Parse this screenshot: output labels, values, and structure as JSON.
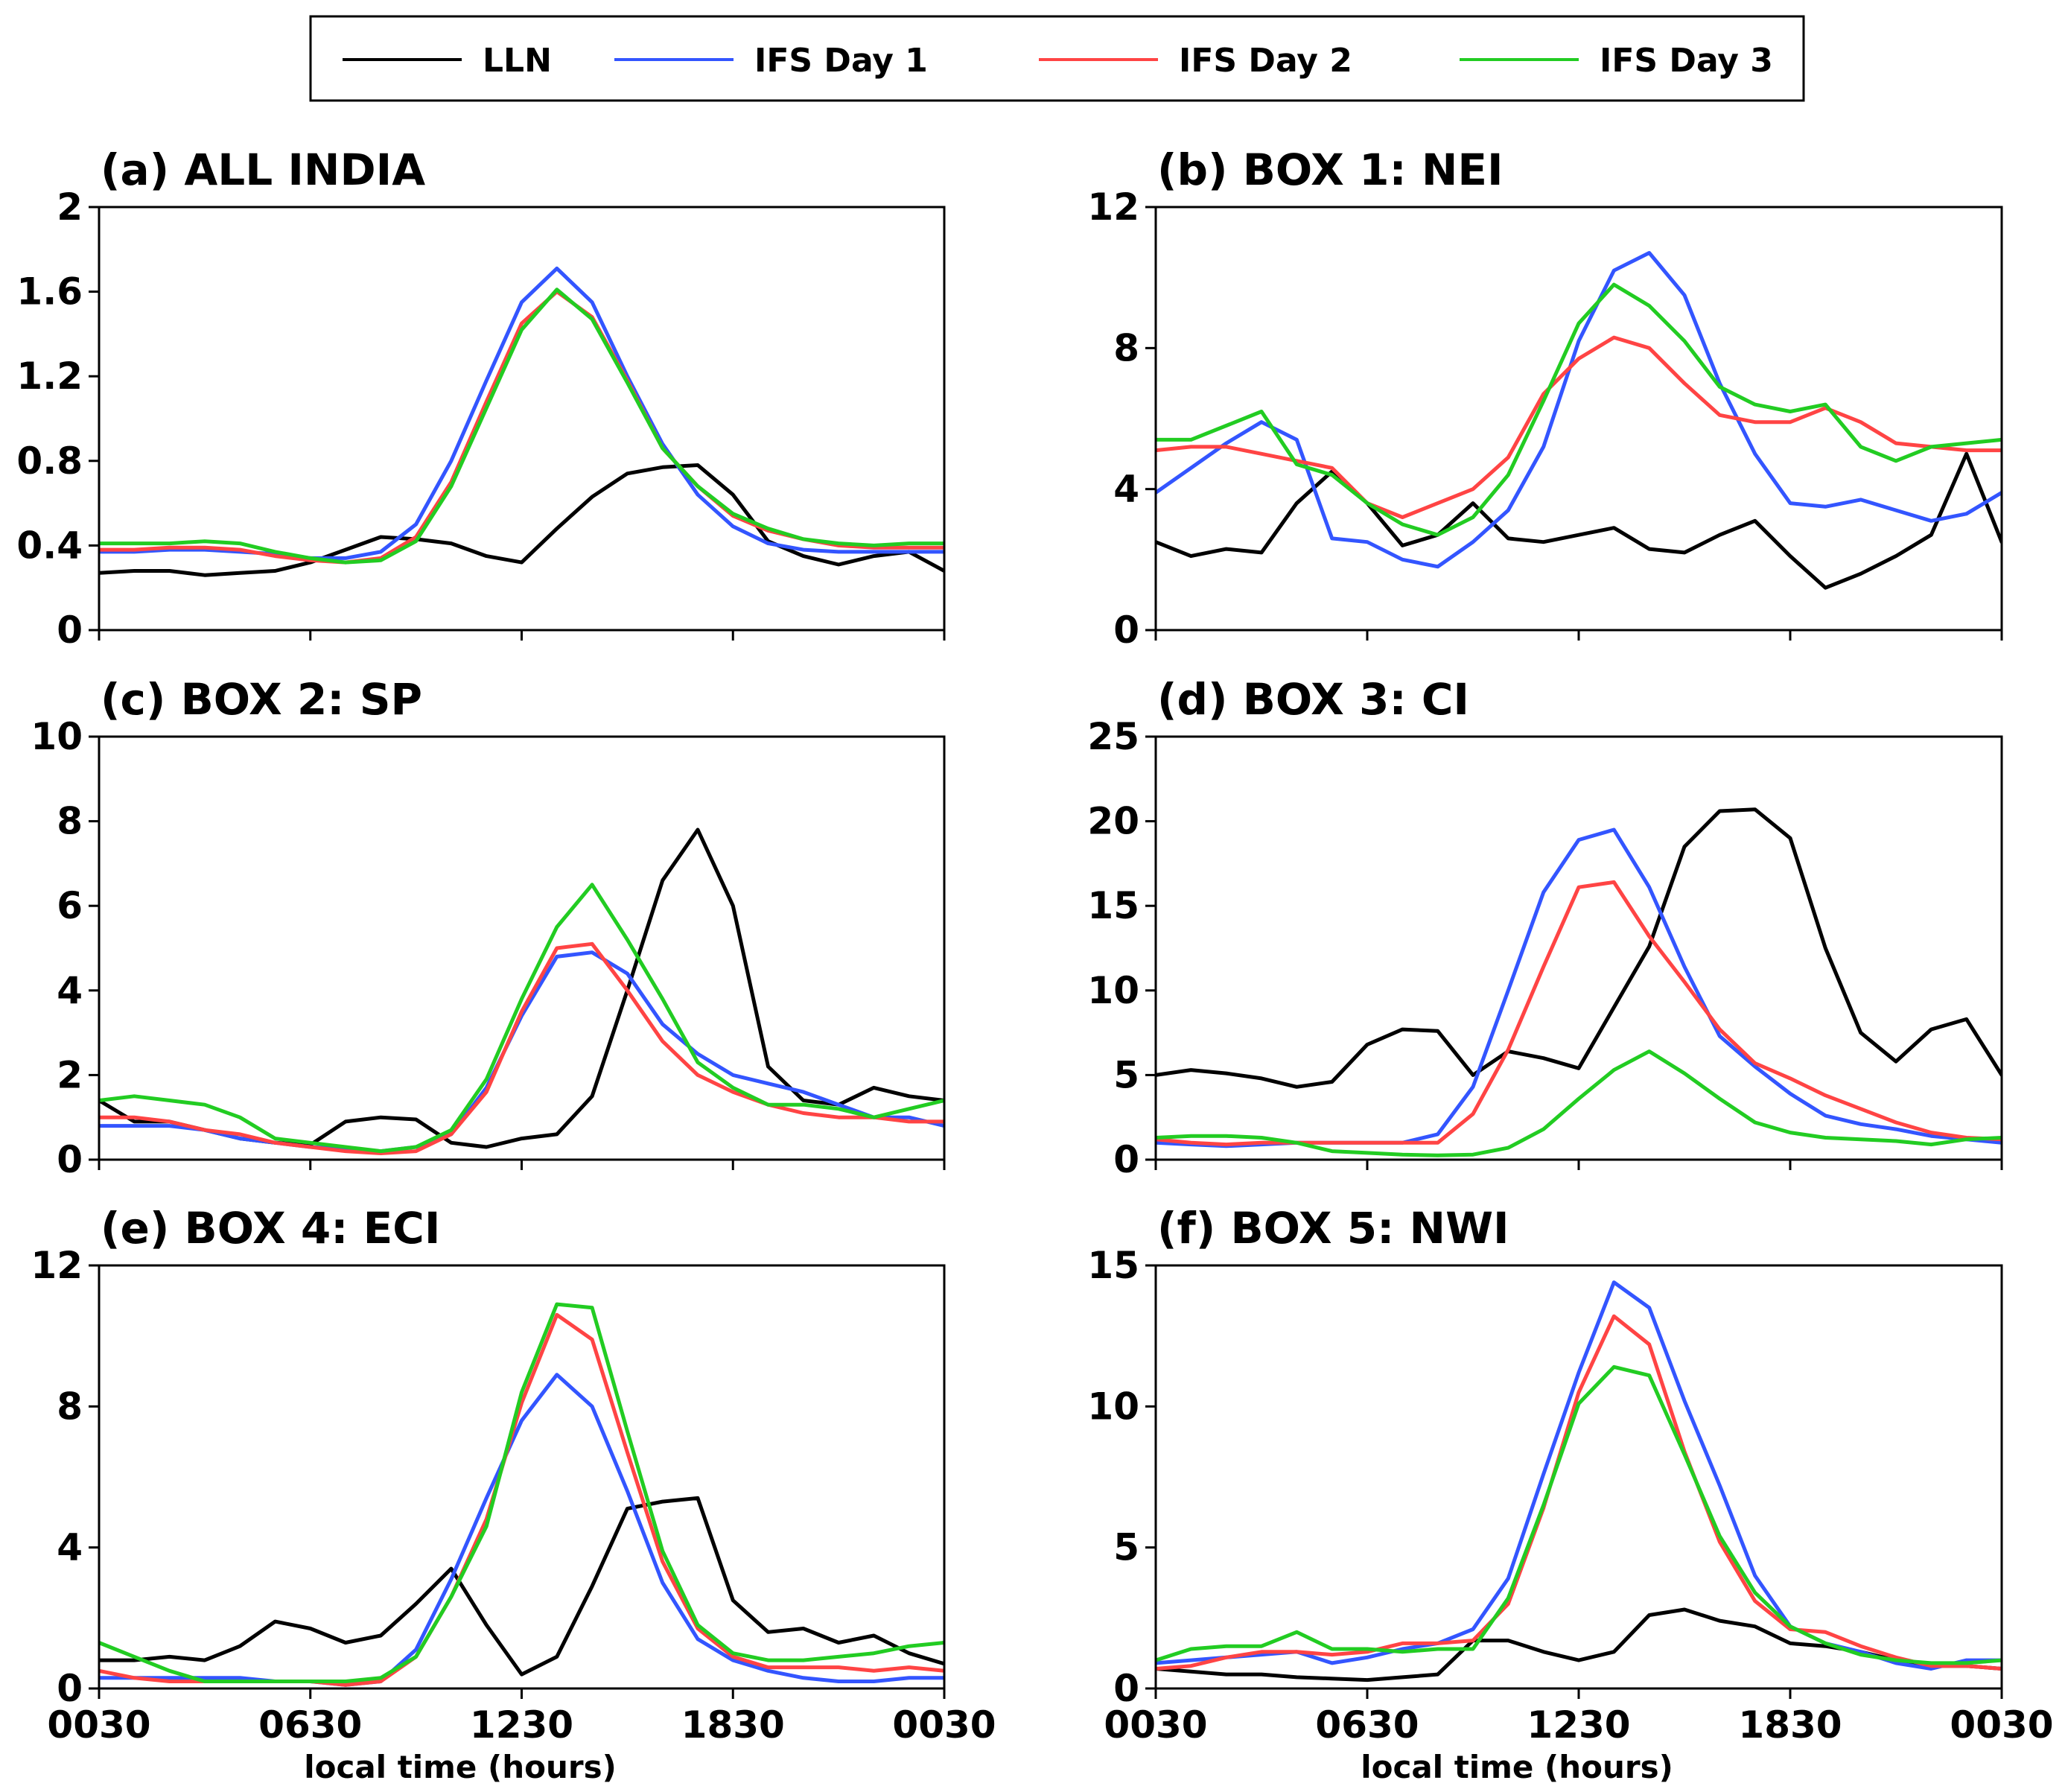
{
  "legend": [
    {
      "name": "LLN",
      "color": "#000000"
    },
    {
      "name": "IFS Day 1",
      "color": "#3355ff"
    },
    {
      "name": "IFS Day 2",
      "color": "#ff4444"
    },
    {
      "name": "IFS Day 3",
      "color": "#22cc22"
    }
  ],
  "chart_data": [
    {
      "type": "line",
      "title": "(a) ALL INDIA",
      "xlabel": "",
      "ylabel": "",
      "xticks": [
        "0030",
        "0630",
        "1230",
        "1830",
        "0030"
      ],
      "yticks": [
        "0",
        "0.4",
        "0.8",
        "1.2",
        "1.6",
        "2"
      ],
      "ylim": [
        0,
        2
      ],
      "x": [
        0.5,
        1.5,
        2.5,
        3.5,
        4.5,
        5.5,
        6.5,
        7.5,
        8.5,
        9.5,
        10.5,
        11.5,
        12.5,
        13.5,
        14.5,
        15.5,
        16.5,
        17.5,
        18.5,
        19.5,
        20.5,
        21.5,
        22.5,
        23.5,
        24.5
      ],
      "series": [
        {
          "name": "LLN",
          "values": [
            0.27,
            0.28,
            0.28,
            0.26,
            0.27,
            0.28,
            0.32,
            0.38,
            0.44,
            0.43,
            0.41,
            0.35,
            0.32,
            0.48,
            0.63,
            0.74,
            0.77,
            0.78,
            0.64,
            0.42,
            0.35,
            0.31,
            0.35,
            0.37,
            0.28
          ]
        },
        {
          "name": "IFS Day 1",
          "values": [
            0.37,
            0.37,
            0.38,
            0.38,
            0.37,
            0.36,
            0.34,
            0.34,
            0.37,
            0.5,
            0.8,
            1.18,
            1.55,
            1.71,
            1.55,
            1.2,
            0.88,
            0.64,
            0.49,
            0.41,
            0.38,
            0.37,
            0.37,
            0.37,
            0.37
          ]
        },
        {
          "name": "IFS Day 2",
          "values": [
            0.38,
            0.38,
            0.39,
            0.39,
            0.38,
            0.35,
            0.33,
            0.32,
            0.34,
            0.44,
            0.7,
            1.08,
            1.45,
            1.6,
            1.48,
            1.18,
            0.86,
            0.68,
            0.54,
            0.47,
            0.43,
            0.4,
            0.39,
            0.39,
            0.39
          ]
        },
        {
          "name": "IFS Day 3",
          "values": [
            0.41,
            0.41,
            0.41,
            0.42,
            0.41,
            0.37,
            0.34,
            0.32,
            0.33,
            0.42,
            0.68,
            1.05,
            1.42,
            1.61,
            1.47,
            1.17,
            0.86,
            0.68,
            0.55,
            0.48,
            0.43,
            0.41,
            0.4,
            0.41,
            0.41
          ]
        }
      ]
    },
    {
      "type": "line",
      "title": "(b) BOX 1: NEI",
      "xlabel": "",
      "ylabel": "",
      "xticks": [
        "0030",
        "0630",
        "1230",
        "1830",
        "0030"
      ],
      "yticks": [
        "0",
        "4",
        "8",
        "12"
      ],
      "ylim": [
        0,
        12
      ],
      "x": [
        0.5,
        1.5,
        2.5,
        3.5,
        4.5,
        5.5,
        6.5,
        7.5,
        8.5,
        9.5,
        10.5,
        11.5,
        12.5,
        13.5,
        14.5,
        15.5,
        16.5,
        17.5,
        18.5,
        19.5,
        20.5,
        21.5,
        22.5,
        23.5,
        24.5
      ],
      "series": [
        {
          "name": "LLN",
          "values": [
            2.5,
            2.1,
            2.3,
            2.2,
            3.6,
            4.5,
            3.6,
            2.4,
            2.7,
            3.6,
            2.6,
            2.5,
            2.7,
            2.9,
            2.3,
            2.2,
            2.7,
            3.1,
            2.1,
            1.2,
            1.6,
            2.1,
            2.7,
            5.0,
            2.5
          ]
        },
        {
          "name": "IFS Day 1",
          "values": [
            3.9,
            4.6,
            5.3,
            5.9,
            5.4,
            2.6,
            2.5,
            2.0,
            1.8,
            2.5,
            3.4,
            5.2,
            8.2,
            10.2,
            10.7,
            9.5,
            7.0,
            5.0,
            3.6,
            3.5,
            3.7,
            3.4,
            3.1,
            3.3,
            3.9
          ]
        },
        {
          "name": "IFS Day 2",
          "values": [
            5.1,
            5.2,
            5.2,
            5.0,
            4.8,
            4.6,
            3.6,
            3.2,
            3.6,
            4.0,
            4.9,
            6.7,
            7.7,
            8.3,
            8.0,
            7.0,
            6.1,
            5.9,
            5.9,
            6.3,
            5.9,
            5.3,
            5.2,
            5.1,
            5.1
          ]
        },
        {
          "name": "IFS Day 3",
          "values": [
            5.4,
            5.4,
            5.8,
            6.2,
            4.7,
            4.4,
            3.6,
            3.0,
            2.7,
            3.2,
            4.4,
            6.5,
            8.7,
            9.8,
            9.2,
            8.2,
            6.9,
            6.4,
            6.2,
            6.4,
            5.2,
            4.8,
            5.2,
            5.3,
            5.4
          ]
        }
      ]
    },
    {
      "type": "line",
      "title": "(c) BOX 2: SP",
      "xlabel": "",
      "ylabel": "",
      "xticks": [
        "0030",
        "0630",
        "1230",
        "1830",
        "0030"
      ],
      "yticks": [
        "0",
        "2",
        "4",
        "6",
        "8",
        "10"
      ],
      "ylim": [
        0,
        10
      ],
      "x": [
        0.5,
        1.5,
        2.5,
        3.5,
        4.5,
        5.5,
        6.5,
        7.5,
        8.5,
        9.5,
        10.5,
        11.5,
        12.5,
        13.5,
        14.5,
        15.5,
        16.5,
        17.5,
        18.5,
        19.5,
        20.5,
        21.5,
        22.5,
        23.5,
        24.5
      ],
      "series": [
        {
          "name": "LLN",
          "values": [
            1.4,
            0.9,
            0.9,
            0.7,
            0.5,
            0.4,
            0.35,
            0.9,
            1.0,
            0.95,
            0.4,
            0.3,
            0.5,
            0.6,
            1.5,
            4.0,
            6.6,
            7.8,
            6.0,
            2.2,
            1.4,
            1.3,
            1.7,
            1.5,
            1.4
          ]
        },
        {
          "name": "IFS Day 1",
          "values": [
            0.8,
            0.8,
            0.8,
            0.7,
            0.5,
            0.4,
            0.3,
            0.25,
            0.2,
            0.3,
            0.6,
            1.7,
            3.4,
            4.8,
            4.9,
            4.4,
            3.2,
            2.5,
            2.0,
            1.8,
            1.6,
            1.3,
            1.0,
            1.0,
            0.8
          ]
        },
        {
          "name": "IFS Day 2",
          "values": [
            1.0,
            1.0,
            0.9,
            0.7,
            0.6,
            0.4,
            0.3,
            0.2,
            0.15,
            0.2,
            0.6,
            1.6,
            3.5,
            5.0,
            5.1,
            4.0,
            2.8,
            2.0,
            1.6,
            1.3,
            1.1,
            1.0,
            1.0,
            0.9,
            0.9
          ]
        },
        {
          "name": "IFS Day 3",
          "values": [
            1.4,
            1.5,
            1.4,
            1.3,
            1.0,
            0.5,
            0.4,
            0.3,
            0.2,
            0.3,
            0.7,
            1.9,
            3.8,
            5.5,
            6.5,
            5.2,
            3.8,
            2.3,
            1.7,
            1.3,
            1.3,
            1.2,
            1.0,
            1.2,
            1.4
          ]
        }
      ]
    },
    {
      "type": "line",
      "title": "(d) BOX 3: CI",
      "xlabel": "",
      "ylabel": "",
      "xticks": [
        "0030",
        "0630",
        "1230",
        "1830",
        "0030"
      ],
      "yticks": [
        "0",
        "5",
        "10",
        "15",
        "20",
        "25"
      ],
      "ylim": [
        0,
        25
      ],
      "x": [
        0.5,
        1.5,
        2.5,
        3.5,
        4.5,
        5.5,
        6.5,
        7.5,
        8.5,
        9.5,
        10.5,
        11.5,
        12.5,
        13.5,
        14.5,
        15.5,
        16.5,
        17.5,
        18.5,
        19.5,
        20.5,
        21.5,
        22.5,
        23.5,
        24.5
      ],
      "series": [
        {
          "name": "LLN",
          "values": [
            5.0,
            5.3,
            5.1,
            4.8,
            4.3,
            4.6,
            6.8,
            7.7,
            7.6,
            5.0,
            6.4,
            6.0,
            5.4,
            9.0,
            12.6,
            18.5,
            20.6,
            20.7,
            19.0,
            12.5,
            7.5,
            5.8,
            7.7,
            8.3,
            5.0
          ]
        },
        {
          "name": "IFS Day 1",
          "values": [
            1.0,
            0.9,
            0.8,
            0.9,
            1.0,
            1.0,
            1.0,
            1.0,
            1.5,
            4.3,
            10.0,
            15.8,
            18.9,
            19.5,
            16.1,
            11.4,
            7.3,
            5.5,
            3.9,
            2.6,
            2.1,
            1.8,
            1.4,
            1.2,
            1.0
          ]
        },
        {
          "name": "IFS Day 2",
          "values": [
            1.2,
            1.0,
            0.9,
            1.0,
            1.0,
            1.0,
            1.0,
            1.0,
            1.0,
            2.7,
            6.5,
            11.4,
            16.1,
            16.4,
            13.2,
            10.5,
            7.7,
            5.7,
            4.8,
            3.8,
            3.0,
            2.2,
            1.6,
            1.3,
            1.2
          ]
        },
        {
          "name": "IFS Day 3",
          "values": [
            1.3,
            1.4,
            1.4,
            1.3,
            1.0,
            0.5,
            0.4,
            0.3,
            0.25,
            0.3,
            0.7,
            1.8,
            3.6,
            5.3,
            6.4,
            5.1,
            3.6,
            2.2,
            1.6,
            1.3,
            1.2,
            1.1,
            0.9,
            1.2,
            1.3
          ]
        }
      ]
    },
    {
      "type": "line",
      "title": "(e) BOX 4: ECI",
      "xlabel": "local time (hours)",
      "ylabel": "",
      "xticks": [
        "0030",
        "0630",
        "1230",
        "1830",
        "0030"
      ],
      "yticks": [
        "0",
        "4",
        "8",
        "12"
      ],
      "ylim": [
        0,
        12
      ],
      "x": [
        0.5,
        1.5,
        2.5,
        3.5,
        4.5,
        5.5,
        6.5,
        7.5,
        8.5,
        9.5,
        10.5,
        11.5,
        12.5,
        13.5,
        14.5,
        15.5,
        16.5,
        17.5,
        18.5,
        19.5,
        20.5,
        21.5,
        22.5,
        23.5,
        24.5
      ],
      "series": [
        {
          "name": "LLN",
          "values": [
            0.8,
            0.8,
            0.9,
            0.8,
            1.2,
            1.9,
            1.7,
            1.3,
            1.5,
            2.4,
            3.4,
            1.8,
            0.4,
            0.9,
            2.9,
            5.1,
            5.3,
            5.4,
            2.5,
            1.6,
            1.7,
            1.3,
            1.5,
            1.0,
            0.7
          ]
        },
        {
          "name": "IFS Day 1",
          "values": [
            0.3,
            0.3,
            0.3,
            0.3,
            0.3,
            0.2,
            0.2,
            0.1,
            0.2,
            1.1,
            3.1,
            5.4,
            7.6,
            8.9,
            8.0,
            5.6,
            3.0,
            1.4,
            0.8,
            0.5,
            0.3,
            0.2,
            0.2,
            0.3,
            0.3
          ]
        },
        {
          "name": "IFS Day 2",
          "values": [
            0.5,
            0.3,
            0.2,
            0.2,
            0.2,
            0.2,
            0.2,
            0.1,
            0.2,
            0.9,
            2.6,
            4.8,
            8.1,
            10.6,
            9.9,
            6.7,
            3.6,
            1.7,
            0.9,
            0.6,
            0.6,
            0.6,
            0.5,
            0.6,
            0.5
          ]
        },
        {
          "name": "IFS Day 3",
          "values": [
            1.3,
            0.9,
            0.5,
            0.2,
            0.2,
            0.2,
            0.2,
            0.2,
            0.3,
            0.9,
            2.6,
            4.6,
            8.4,
            10.9,
            10.8,
            7.3,
            3.9,
            1.8,
            1.0,
            0.8,
            0.8,
            0.9,
            1.0,
            1.2,
            1.3
          ]
        }
      ]
    },
    {
      "type": "line",
      "title": "(f) BOX 5: NWI",
      "xlabel": "local time (hours)",
      "ylabel": "",
      "xticks": [
        "0030",
        "0630",
        "1230",
        "1830",
        "0030"
      ],
      "yticks": [
        "0",
        "5",
        "10",
        "15"
      ],
      "ylim": [
        0,
        15
      ],
      "x": [
        0.5,
        1.5,
        2.5,
        3.5,
        4.5,
        5.5,
        6.5,
        7.5,
        8.5,
        9.5,
        10.5,
        11.5,
        12.5,
        13.5,
        14.5,
        15.5,
        16.5,
        17.5,
        18.5,
        19.5,
        20.5,
        21.5,
        22.5,
        23.5,
        24.5
      ],
      "series": [
        {
          "name": "LLN",
          "values": [
            0.7,
            0.6,
            0.5,
            0.5,
            0.4,
            0.35,
            0.3,
            0.4,
            0.5,
            1.7,
            1.7,
            1.3,
            1.0,
            1.3,
            2.6,
            2.8,
            2.4,
            2.2,
            1.6,
            1.5,
            1.3,
            1.0,
            0.8,
            0.8,
            0.7
          ]
        },
        {
          "name": "IFS Day 1",
          "values": [
            0.9,
            1.0,
            1.1,
            1.2,
            1.3,
            0.9,
            1.1,
            1.4,
            1.6,
            2.1,
            3.9,
            7.6,
            11.2,
            14.4,
            13.5,
            10.2,
            7.2,
            4.0,
            2.2,
            1.6,
            1.3,
            0.9,
            0.7,
            1.0,
            1.0
          ]
        },
        {
          "name": "IFS Day 2",
          "values": [
            0.7,
            0.8,
            1.1,
            1.3,
            1.3,
            1.2,
            1.3,
            1.6,
            1.6,
            1.7,
            3.0,
            6.4,
            10.5,
            13.2,
            12.2,
            8.4,
            5.2,
            3.1,
            2.1,
            2.0,
            1.5,
            1.1,
            0.8,
            0.8,
            0.7
          ]
        },
        {
          "name": "IFS Day 3",
          "values": [
            1.0,
            1.4,
            1.5,
            1.5,
            2.0,
            1.4,
            1.4,
            1.3,
            1.4,
            1.4,
            3.2,
            6.5,
            10.1,
            11.4,
            11.1,
            8.3,
            5.4,
            3.4,
            2.2,
            1.6,
            1.2,
            1.0,
            0.9,
            0.9,
            1.0
          ]
        }
      ]
    }
  ]
}
